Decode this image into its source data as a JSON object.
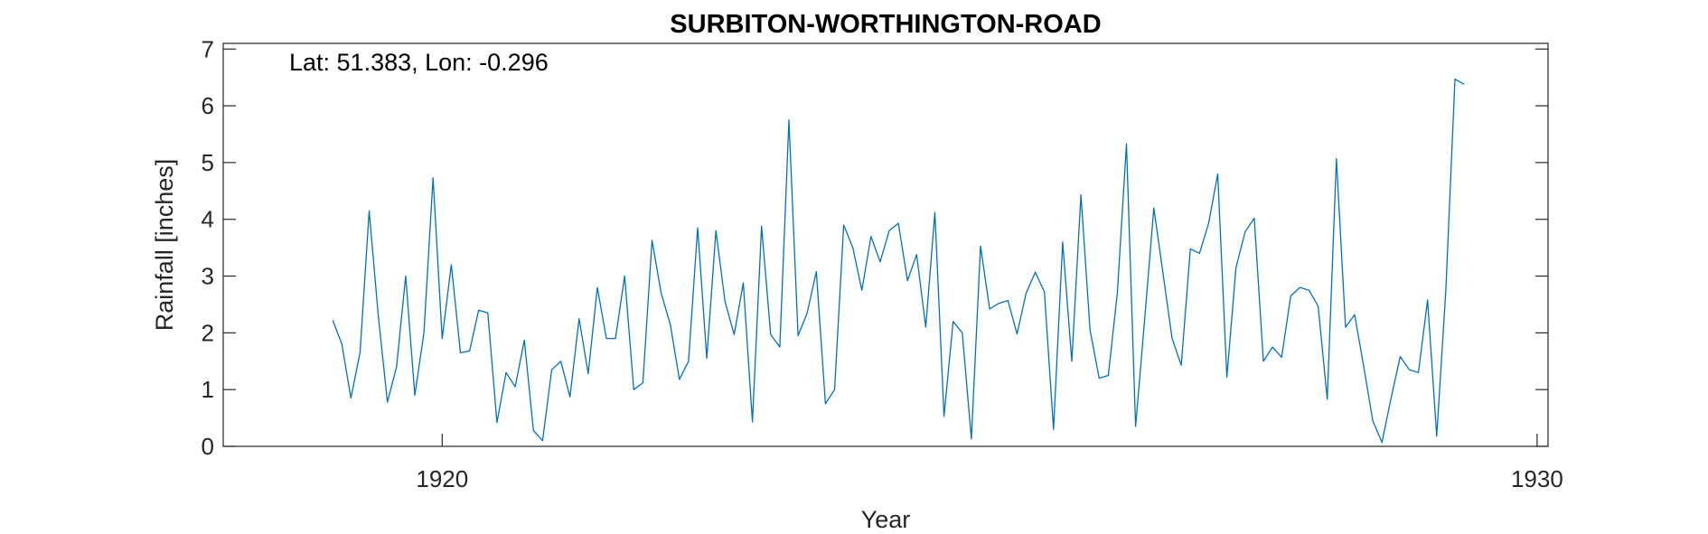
{
  "chart_data": {
    "type": "line",
    "title": "SURBITON-WORTHINGTON-ROAD",
    "annotation": "Lat: 51.383, Lon: -0.296",
    "xlabel": "Year",
    "ylabel": "Rainfall [inches]",
    "xlim": [
      1918.0,
      1930.1
    ],
    "ylim": [
      0,
      7.1
    ],
    "xticks": [
      1920,
      1930
    ],
    "xtick_labels": [
      "1920",
      "1930"
    ],
    "yticks": [
      0,
      1,
      2,
      3,
      4,
      5,
      6,
      7
    ],
    "ytick_labels": [
      "0",
      "1",
      "2",
      "3",
      "4",
      "5",
      "6",
      "7"
    ],
    "grid": false,
    "series_color": "#0072BD",
    "series": [
      {
        "start_year": 1919,
        "start_month": 1,
        "step_months": 1,
        "values": [
          2.22,
          1.8,
          0.85,
          1.65,
          4.15,
          2.3,
          0.78,
          1.4,
          3.0,
          0.9,
          2.0,
          4.73,
          1.9,
          3.2,
          1.65,
          1.68,
          2.4,
          2.35,
          0.42,
          1.3,
          1.05,
          1.87,
          0.28,
          0.1,
          1.35,
          1.5,
          0.87,
          2.25,
          1.28,
          2.8,
          1.9,
          1.9,
          3.0,
          1.0,
          1.12,
          3.63,
          2.7,
          2.15,
          1.18,
          1.5,
          3.85,
          1.55,
          3.8,
          2.55,
          1.97,
          2.88,
          0.43,
          3.88,
          1.97,
          1.75,
          5.75,
          1.95,
          2.35,
          3.08,
          0.75,
          1.0,
          3.9,
          3.5,
          2.75,
          3.7,
          3.25,
          3.8,
          3.93,
          2.92,
          3.38,
          2.1,
          4.12,
          0.53,
          2.2,
          2.0,
          0.13,
          3.53,
          2.42,
          2.52,
          2.57,
          1.98,
          2.7,
          3.07,
          2.72,
          0.3,
          3.6,
          1.5,
          4.43,
          2.05,
          1.2,
          1.25,
          2.7,
          5.33,
          0.35,
          2.25,
          4.2,
          3.05,
          1.9,
          1.43,
          3.48,
          3.4,
          3.93,
          4.8,
          1.22,
          3.15,
          3.78,
          4.02,
          1.5,
          1.75,
          1.57,
          2.65,
          2.8,
          2.75,
          2.47,
          0.83,
          5.07,
          2.1,
          2.32,
          1.4,
          0.45,
          0.07,
          0.85,
          1.58,
          1.35,
          1.3,
          2.58,
          0.18,
          2.75,
          6.47,
          6.38
        ]
      }
    ]
  }
}
